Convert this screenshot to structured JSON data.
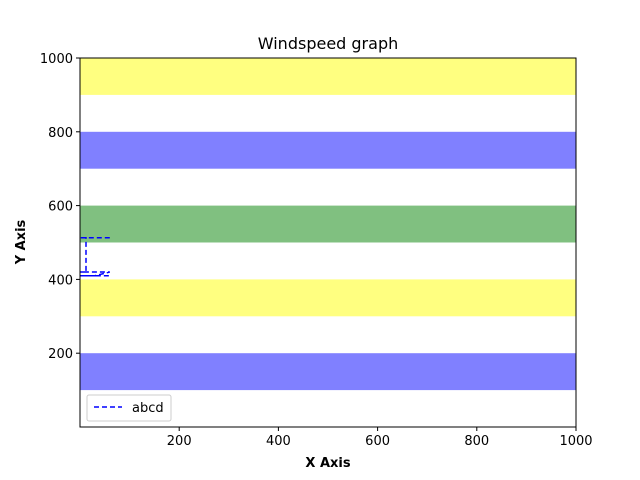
{
  "chart_data": {
    "type": "line",
    "title": "Windspeed graph",
    "xlabel": "X Axis",
    "ylabel": "Y Axis",
    "xlim": [
      0,
      1000
    ],
    "ylim": [
      0,
      1000
    ],
    "xticks": [
      200,
      400,
      600,
      800,
      1000
    ],
    "yticks": [
      200,
      400,
      600,
      800,
      1000
    ],
    "grid": false,
    "legend_position": "lower-left",
    "bands": [
      {
        "ymin": 900,
        "ymax": 1000,
        "color": "#ffff80"
      },
      {
        "ymin": 700,
        "ymax": 800,
        "color": "#8080ff"
      },
      {
        "ymin": 500,
        "ymax": 600,
        "color": "#80c080"
      },
      {
        "ymin": 300,
        "ymax": 400,
        "color": "#ffff80"
      },
      {
        "ymin": 100,
        "ymax": 200,
        "color": "#8080ff"
      }
    ],
    "series": [
      {
        "name": "abcd",
        "color": "#0000ff",
        "linestyle": "dashed",
        "x": [
          60,
          0,
          12,
          12,
          0,
          60,
          30,
          0,
          60
        ],
        "y": [
          513,
          513,
          513,
          420,
          420,
          420,
          410,
          410,
          410
        ]
      }
    ]
  }
}
